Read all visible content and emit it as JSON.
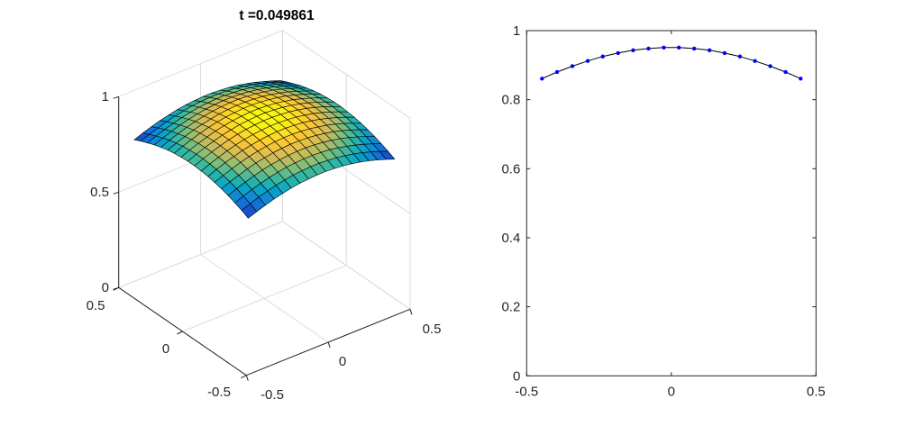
{
  "figure": {
    "background": "#ffffff"
  },
  "chart_data": [
    {
      "type": "surface",
      "title": "t =0.049861",
      "colormap": "parula",
      "grid": true,
      "view": "3d",
      "xlim": [
        -0.5,
        0.5
      ],
      "ylim": [
        -0.5,
        0.5
      ],
      "zlim": [
        0,
        1
      ],
      "xticks": [
        "-0.5",
        "0",
        "0.5"
      ],
      "yticks": [
        "-0.5",
        "0",
        "0.5"
      ],
      "zticks": [
        "0",
        "0.5",
        "1"
      ],
      "x": [
        -0.447,
        -0.395,
        -0.342,
        -0.289,
        -0.237,
        -0.184,
        -0.132,
        -0.079,
        -0.026,
        0.026,
        0.079,
        0.132,
        0.184,
        0.237,
        0.289,
        0.342,
        0.395,
        0.447
      ],
      "y": [
        -0.447,
        -0.395,
        -0.342,
        -0.289,
        -0.237,
        -0.184,
        -0.132,
        -0.079,
        -0.026,
        0.026,
        0.079,
        0.132,
        0.184,
        0.237,
        0.289,
        0.342,
        0.395,
        0.447
      ],
      "z": [
        [
          0.78,
          0.797,
          0.812,
          0.826,
          0.837,
          0.847,
          0.854,
          0.858,
          0.861,
          0.861,
          0.858,
          0.854,
          0.847,
          0.837,
          0.826,
          0.812,
          0.797,
          0.78
        ],
        [
          0.797,
          0.814,
          0.83,
          0.844,
          0.856,
          0.865,
          0.873,
          0.877,
          0.88,
          0.88,
          0.877,
          0.873,
          0.865,
          0.856,
          0.844,
          0.83,
          0.814,
          0.797
        ],
        [
          0.812,
          0.83,
          0.846,
          0.86,
          0.872,
          0.882,
          0.89,
          0.894,
          0.897,
          0.897,
          0.894,
          0.89,
          0.882,
          0.872,
          0.86,
          0.846,
          0.83,
          0.812
        ],
        [
          0.826,
          0.844,
          0.86,
          0.875,
          0.887,
          0.897,
          0.904,
          0.909,
          0.912,
          0.912,
          0.909,
          0.904,
          0.897,
          0.887,
          0.875,
          0.86,
          0.844,
          0.826
        ],
        [
          0.837,
          0.856,
          0.872,
          0.887,
          0.9,
          0.909,
          0.917,
          0.922,
          0.925,
          0.925,
          0.922,
          0.917,
          0.909,
          0.9,
          0.887,
          0.872,
          0.856,
          0.837
        ],
        [
          0.847,
          0.865,
          0.882,
          0.897,
          0.909,
          0.919,
          0.927,
          0.932,
          0.935,
          0.935,
          0.932,
          0.927,
          0.919,
          0.909,
          0.897,
          0.882,
          0.865,
          0.847
        ],
        [
          0.854,
          0.873,
          0.89,
          0.904,
          0.917,
          0.927,
          0.935,
          0.94,
          0.943,
          0.943,
          0.94,
          0.935,
          0.927,
          0.917,
          0.904,
          0.89,
          0.873,
          0.854
        ],
        [
          0.858,
          0.877,
          0.894,
          0.909,
          0.922,
          0.932,
          0.94,
          0.945,
          0.948,
          0.948,
          0.945,
          0.94,
          0.932,
          0.922,
          0.909,
          0.894,
          0.877,
          0.858
        ],
        [
          0.861,
          0.88,
          0.897,
          0.912,
          0.925,
          0.935,
          0.943,
          0.948,
          0.951,
          0.951,
          0.948,
          0.943,
          0.935,
          0.925,
          0.912,
          0.897,
          0.88,
          0.861
        ],
        [
          0.861,
          0.88,
          0.897,
          0.912,
          0.925,
          0.935,
          0.943,
          0.948,
          0.951,
          0.951,
          0.948,
          0.943,
          0.935,
          0.925,
          0.912,
          0.897,
          0.88,
          0.861
        ],
        [
          0.858,
          0.877,
          0.894,
          0.909,
          0.922,
          0.932,
          0.94,
          0.945,
          0.948,
          0.948,
          0.945,
          0.94,
          0.932,
          0.922,
          0.909,
          0.894,
          0.877,
          0.858
        ],
        [
          0.854,
          0.873,
          0.89,
          0.904,
          0.917,
          0.927,
          0.935,
          0.94,
          0.943,
          0.943,
          0.94,
          0.935,
          0.927,
          0.917,
          0.904,
          0.89,
          0.873,
          0.854
        ],
        [
          0.847,
          0.865,
          0.882,
          0.897,
          0.909,
          0.919,
          0.927,
          0.932,
          0.935,
          0.935,
          0.932,
          0.927,
          0.919,
          0.909,
          0.897,
          0.882,
          0.865,
          0.847
        ],
        [
          0.837,
          0.856,
          0.872,
          0.887,
          0.9,
          0.909,
          0.917,
          0.922,
          0.925,
          0.925,
          0.922,
          0.917,
          0.909,
          0.9,
          0.887,
          0.872,
          0.856,
          0.837
        ],
        [
          0.826,
          0.844,
          0.86,
          0.875,
          0.887,
          0.897,
          0.904,
          0.909,
          0.912,
          0.912,
          0.909,
          0.904,
          0.897,
          0.887,
          0.875,
          0.86,
          0.844,
          0.826
        ],
        [
          0.812,
          0.83,
          0.846,
          0.86,
          0.872,
          0.882,
          0.89,
          0.894,
          0.897,
          0.897,
          0.894,
          0.89,
          0.882,
          0.872,
          0.86,
          0.846,
          0.83,
          0.812
        ],
        [
          0.797,
          0.814,
          0.83,
          0.844,
          0.856,
          0.865,
          0.873,
          0.877,
          0.88,
          0.88,
          0.877,
          0.873,
          0.865,
          0.856,
          0.844,
          0.83,
          0.814,
          0.797
        ],
        [
          0.78,
          0.797,
          0.812,
          0.826,
          0.837,
          0.847,
          0.854,
          0.858,
          0.861,
          0.861,
          0.858,
          0.854,
          0.847,
          0.837,
          0.826,
          0.812,
          0.797,
          0.78
        ]
      ]
    },
    {
      "type": "line",
      "xlim": [
        -0.5,
        0.5
      ],
      "ylim": [
        0,
        1
      ],
      "xticks": [
        "-0.5",
        "0",
        "0.5"
      ],
      "yticks": [
        "0",
        "0.2",
        "0.4",
        "0.6",
        "0.8",
        "1"
      ],
      "grid": false,
      "line_color": "#000000",
      "marker_color": "#0000ff",
      "marker": "dot",
      "x": [
        -0.447,
        -0.395,
        -0.342,
        -0.289,
        -0.237,
        -0.184,
        -0.132,
        -0.079,
        -0.026,
        0.026,
        0.079,
        0.132,
        0.184,
        0.237,
        0.289,
        0.342,
        0.395,
        0.447
      ],
      "y": [
        0.861,
        0.88,
        0.897,
        0.912,
        0.925,
        0.935,
        0.943,
        0.948,
        0.951,
        0.951,
        0.948,
        0.943,
        0.935,
        0.925,
        0.912,
        0.897,
        0.88,
        0.861
      ]
    }
  ]
}
